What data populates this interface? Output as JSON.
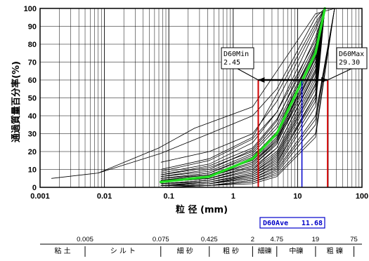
{
  "chart_data": {
    "type": "line",
    "xlabel": "粒 径 (mm)",
    "ylabel": "通過質量百分率(%)",
    "x_scale": "log",
    "xlim": [
      0.001,
      100
    ],
    "ylim": [
      0,
      100
    ],
    "x_ticks": [
      "0.001",
      "0.01",
      "0.1",
      "1",
      "10",
      "100"
    ],
    "y_ticks": [
      "0",
      "10",
      "20",
      "30",
      "40",
      "50",
      "60",
      "70",
      "80",
      "90",
      "100"
    ],
    "grid": true,
    "average_curve": {
      "color": "#22dd22",
      "x": [
        0.075,
        0.425,
        2,
        4.75,
        19,
        26.5
      ],
      "y": [
        3,
        6,
        16,
        30,
        75,
        100
      ]
    },
    "sample_curves": [
      {
        "x": [
          0.0015,
          0.008,
          0.07,
          0.25,
          2,
          4.75,
          19,
          37.5
        ],
        "y": [
          5,
          8,
          22,
          33,
          45,
          65,
          97,
          100
        ]
      },
      {
        "x": [
          0.008,
          0.075,
          0.425,
          2,
          4.75,
          19,
          26.5
        ],
        "y": [
          8,
          19,
          30,
          40,
          55,
          95,
          100
        ]
      },
      {
        "x": [
          0.075,
          0.425,
          2,
          4.75,
          19,
          26.5
        ],
        "y": [
          14,
          20,
          30,
          48,
          90,
          100
        ]
      },
      {
        "x": [
          0.075,
          0.425,
          2,
          4.75,
          19,
          26.5
        ],
        "y": [
          10,
          16,
          28,
          52,
          92,
          100
        ]
      },
      {
        "x": [
          0.075,
          0.425,
          2,
          4.75,
          19,
          26.5
        ],
        "y": [
          9,
          15,
          27,
          42,
          82,
          100
        ]
      },
      {
        "x": [
          0.075,
          0.425,
          2,
          4.75,
          19,
          26.5
        ],
        "y": [
          8,
          13,
          25,
          42,
          88,
          100
        ]
      },
      {
        "x": [
          0.075,
          0.425,
          2,
          4.75,
          19,
          26.5
        ],
        "y": [
          7,
          12,
          22,
          38,
          80,
          100
        ]
      },
      {
        "x": [
          0.075,
          0.425,
          2,
          4.75,
          19,
          26.5
        ],
        "y": [
          7,
          11,
          20,
          35,
          78,
          100
        ]
      },
      {
        "x": [
          0.075,
          0.425,
          2,
          4.75,
          19,
          26.5
        ],
        "y": [
          6,
          10,
          21,
          37,
          84,
          100
        ]
      },
      {
        "x": [
          0.075,
          0.425,
          2,
          4.75,
          19,
          26.5
        ],
        "y": [
          6,
          9,
          19,
          33,
          77,
          100
        ]
      },
      {
        "x": [
          0.075,
          0.425,
          2,
          4.75,
          19,
          26.5
        ],
        "y": [
          5,
          8,
          17,
          31,
          76,
          100
        ]
      },
      {
        "x": [
          0.075,
          0.425,
          2,
          4.75,
          19,
          26.5
        ],
        "y": [
          5,
          8,
          18,
          29,
          74,
          100
        ]
      },
      {
        "x": [
          0.075,
          0.425,
          2,
          4.75,
          19,
          26.5
        ],
        "y": [
          5,
          7,
          16,
          31,
          79,
          100
        ]
      },
      {
        "x": [
          0.075,
          0.425,
          2,
          4.75,
          19,
          26.5
        ],
        "y": [
          4,
          7,
          15,
          28,
          72,
          100
        ]
      },
      {
        "x": [
          0.075,
          0.425,
          2,
          4.75,
          19,
          26.5
        ],
        "y": [
          4,
          6,
          14,
          27,
          70,
          100
        ]
      },
      {
        "x": [
          0.075,
          0.425,
          2,
          4.75,
          19,
          26.5
        ],
        "y": [
          4,
          6,
          13,
          26,
          68,
          100
        ]
      },
      {
        "x": [
          0.075,
          0.425,
          2,
          4.75,
          19,
          26.5
        ],
        "y": [
          3,
          6,
          14,
          26,
          73,
          100
        ]
      },
      {
        "x": [
          0.075,
          0.425,
          2,
          4.75,
          19,
          26.5
        ],
        "y": [
          3,
          5,
          12,
          25,
          66,
          100
        ]
      },
      {
        "x": [
          0.075,
          0.425,
          2,
          4.75,
          19,
          26.5
        ],
        "y": [
          3,
          5,
          12,
          24,
          70,
          100
        ]
      },
      {
        "x": [
          0.075,
          0.425,
          2,
          4.75,
          19,
          26.5
        ],
        "y": [
          3,
          5,
          11,
          22,
          64,
          100
        ]
      },
      {
        "x": [
          0.075,
          0.425,
          2,
          4.75,
          19,
          26.5
        ],
        "y": [
          2,
          4,
          10,
          22,
          65,
          100
        ]
      },
      {
        "x": [
          0.075,
          0.425,
          2,
          4.75,
          19,
          26.5
        ],
        "y": [
          2,
          4,
          10,
          20,
          62,
          100
        ]
      },
      {
        "x": [
          0.075,
          0.425,
          2,
          4.75,
          19,
          26.5
        ],
        "y": [
          2,
          4,
          9,
          19,
          60,
          100
        ]
      },
      {
        "x": [
          0.075,
          0.425,
          2,
          4.75,
          19,
          26.5
        ],
        "y": [
          2,
          3,
          8,
          18,
          58,
          100
        ]
      },
      {
        "x": [
          0.075,
          0.425,
          2,
          4.75,
          19,
          26.5
        ],
        "y": [
          1,
          3,
          8,
          17,
          57,
          100
        ]
      },
      {
        "x": [
          0.075,
          0.425,
          2,
          4.75,
          19,
          26.5
        ],
        "y": [
          1,
          3,
          7,
          16,
          55,
          100
        ]
      },
      {
        "x": [
          0.075,
          0.425,
          2,
          4.75,
          19,
          26.5
        ],
        "y": [
          1,
          2,
          7,
          15,
          52,
          100
        ]
      },
      {
        "x": [
          0.075,
          0.425,
          2,
          4.75,
          19,
          26.5
        ],
        "y": [
          1,
          2,
          6,
          14,
          50,
          100
        ]
      },
      {
        "x": [
          0.075,
          0.425,
          2,
          4.75,
          19,
          26.5
        ],
        "y": [
          1,
          2,
          6,
          13,
          52,
          100
        ]
      },
      {
        "x": [
          0.075,
          0.425,
          2,
          4.75,
          19,
          26.5
        ],
        "y": [
          1,
          2,
          5,
          12,
          48,
          100
        ]
      },
      {
        "x": [
          0.075,
          0.425,
          2,
          4.75,
          19,
          26.5
        ],
        "y": [
          1,
          2,
          5,
          11,
          45,
          100
        ]
      },
      {
        "x": [
          0.075,
          0.425,
          2,
          4.75,
          19,
          37.5
        ],
        "y": [
          1,
          1,
          4,
          10,
          40,
          100
        ]
      },
      {
        "x": [
          0.075,
          0.425,
          2,
          4.75,
          19,
          37.5
        ],
        "y": [
          1,
          1,
          4,
          9,
          38,
          100
        ]
      },
      {
        "x": [
          0.075,
          0.425,
          2,
          4.75,
          19,
          37.5
        ],
        "y": [
          0,
          1,
          3,
          8,
          35,
          100
        ]
      },
      {
        "x": [
          0.075,
          0.425,
          2,
          4.75,
          19,
          37.5
        ],
        "y": [
          0,
          1,
          3,
          7,
          30,
          100
        ]
      },
      {
        "x": [
          0.075,
          0.425,
          2,
          4.75,
          19,
          37.5
        ],
        "y": [
          0,
          1,
          2,
          6,
          28,
          100
        ]
      }
    ],
    "d60_markers": {
      "min": {
        "value": 2.45,
        "label": "D60Min",
        "value_text": "2.45",
        "color": "#d00000"
      },
      "max": {
        "value": 29.3,
        "label": "D60Max",
        "value_text": "29.30",
        "color": "#d00000"
      },
      "ave": {
        "value": 11.68,
        "label": "D60Ave",
        "value_text": "11.68",
        "color": "#0000cc"
      },
      "level": 60
    }
  },
  "soil_scale": {
    "boundaries": [
      {
        "value": 0.005,
        "label": "0.005"
      },
      {
        "value": 0.075,
        "label": "0.075"
      },
      {
        "value": 0.425,
        "label": "0.425"
      },
      {
        "value": 2,
        "label": "2"
      },
      {
        "value": 4.75,
        "label": "4.75"
      },
      {
        "value": 19,
        "label": "19"
      },
      {
        "value": 75,
        "label": "75"
      }
    ],
    "zones": [
      {
        "from": 0.001,
        "to": 0.005,
        "name": "粘 土"
      },
      {
        "from": 0.005,
        "to": 0.075,
        "name": "シ ル ト"
      },
      {
        "from": 0.075,
        "to": 0.425,
        "name": "細 砂"
      },
      {
        "from": 0.425,
        "to": 2,
        "name": "粗 砂"
      },
      {
        "from": 2,
        "to": 4.75,
        "name": "細礫"
      },
      {
        "from": 4.75,
        "to": 19,
        "name": "中礫"
      },
      {
        "from": 19,
        "to": 75,
        "name": "粗 礫"
      }
    ]
  }
}
